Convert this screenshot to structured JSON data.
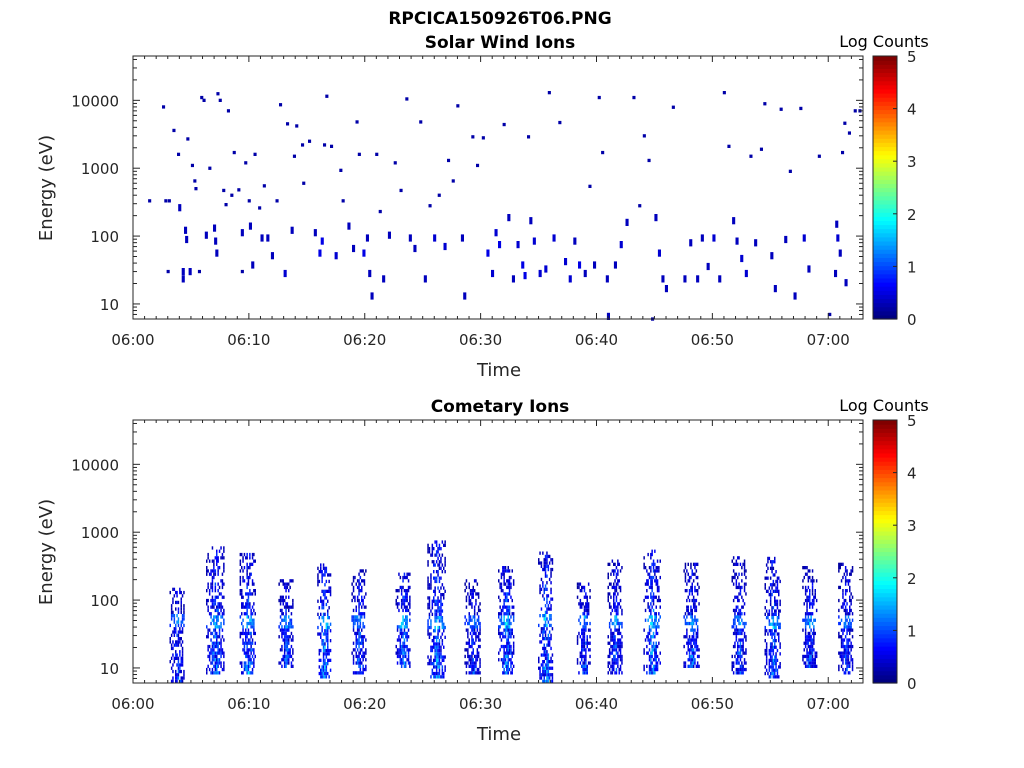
{
  "figure": {
    "title": "RPCICA150926T06.PNG"
  },
  "chart_data": [
    {
      "type": "heatmap",
      "title": "Solar Wind Ions",
      "xlabel": "Time",
      "ylabel": "Energy (eV)",
      "x_ticks": [
        "06:00",
        "06:10",
        "06:20",
        "06:30",
        "06:40",
        "06:50",
        "07:00"
      ],
      "xlim_minutes": [
        0,
        63
      ],
      "y_scale": "log",
      "y_ticks": [
        "10",
        "100",
        "1000",
        "10000"
      ],
      "ylim": [
        6,
        45000
      ],
      "colorbar": {
        "label": "Log Counts",
        "ticks": [
          "0",
          "1",
          "2",
          "3",
          "4",
          "5"
        ],
        "range": [
          0,
          5
        ],
        "colormap": "jet"
      },
      "cells": [
        [
          2.5,
          8000,
          0.2
        ],
        [
          2.7,
          330,
          0.2
        ],
        [
          3.0,
          330,
          0.2
        ],
        [
          2.9,
          30,
          0.2
        ],
        [
          3.4,
          3600,
          0.2
        ],
        [
          3.8,
          1600,
          0.2
        ],
        [
          3.9,
          280,
          0.3
        ],
        [
          4.2,
          32,
          0.3
        ],
        [
          4.2,
          25,
          0.3
        ],
        [
          4.4,
          130,
          0.3
        ],
        [
          4.5,
          95,
          0.3
        ],
        [
          4.6,
          2700,
          0.2
        ],
        [
          4.8,
          32,
          0.3
        ],
        [
          5.0,
          1100,
          0.2
        ],
        [
          5.2,
          650,
          0.2
        ],
        [
          5.3,
          500,
          0.2
        ],
        [
          5.6,
          30,
          0.2
        ],
        [
          5.8,
          11000,
          0.2
        ],
        [
          6.0,
          10000,
          0.2
        ],
        [
          6.2,
          110,
          0.3
        ],
        [
          6.5,
          1000,
          0.2
        ],
        [
          6.9,
          140,
          0.3
        ],
        [
          7.0,
          90,
          0.3
        ],
        [
          7.1,
          60,
          0.3
        ],
        [
          7.2,
          12500,
          0.2
        ],
        [
          7.4,
          10000,
          0.2
        ],
        [
          7.7,
          470,
          0.2
        ],
        [
          7.9,
          290,
          0.2
        ],
        [
          8.1,
          7000,
          0.2
        ],
        [
          8.4,
          400,
          0.2
        ],
        [
          8.6,
          1700,
          0.2
        ],
        [
          9.0,
          480,
          0.2
        ],
        [
          9.3,
          120,
          0.3
        ],
        [
          9.3,
          30,
          0.2
        ],
        [
          9.6,
          1200,
          0.2
        ],
        [
          9.9,
          330,
          0.2
        ],
        [
          10.0,
          150,
          0.3
        ],
        [
          10.2,
          40,
          0.3
        ],
        [
          10.4,
          1600,
          0.2
        ],
        [
          10.8,
          260,
          0.2
        ],
        [
          11.0,
          100,
          0.3
        ],
        [
          11.2,
          550,
          0.2
        ],
        [
          11.5,
          100,
          0.3
        ],
        [
          11.9,
          55,
          0.3
        ],
        [
          12.3,
          330,
          0.2
        ],
        [
          12.6,
          8600,
          0.2
        ],
        [
          13.0,
          30,
          0.4
        ],
        [
          13.2,
          4500,
          0.2
        ],
        [
          13.6,
          130,
          0.3
        ],
        [
          13.8,
          1500,
          0.2
        ],
        [
          14.0,
          4200,
          0.2
        ],
        [
          14.5,
          2200,
          0.2
        ],
        [
          14.6,
          600,
          0.2
        ],
        [
          15.1,
          2500,
          0.2
        ],
        [
          15.6,
          120,
          0.3
        ],
        [
          16.0,
          60,
          0.5
        ],
        [
          16.2,
          90,
          0.5
        ],
        [
          16.4,
          2200,
          0.2
        ],
        [
          16.6,
          11500,
          0.2
        ],
        [
          17.0,
          2100,
          0.2
        ],
        [
          17.4,
          55,
          0.4
        ],
        [
          17.8,
          930,
          0.2
        ],
        [
          18.0,
          330,
          0.2
        ],
        [
          18.5,
          150,
          0.3
        ],
        [
          18.9,
          70,
          0.3
        ],
        [
          19.2,
          4800,
          0.2
        ],
        [
          19.4,
          1600,
          0.2
        ],
        [
          19.8,
          60,
          0.5
        ],
        [
          20.1,
          100,
          0.3
        ],
        [
          20.3,
          30,
          0.3
        ],
        [
          20.5,
          14,
          0.3
        ],
        [
          20.9,
          1600,
          0.2
        ],
        [
          21.2,
          230,
          0.2
        ],
        [
          21.5,
          25,
          0.3
        ],
        [
          22.0,
          110,
          0.3
        ],
        [
          22.5,
          1200,
          0.2
        ],
        [
          23.0,
          470,
          0.2
        ],
        [
          23.5,
          10500,
          0.2
        ],
        [
          23.8,
          100,
          0.3
        ],
        [
          24.2,
          70,
          0.3
        ],
        [
          24.7,
          4800,
          0.2
        ],
        [
          25.1,
          25,
          0.3
        ],
        [
          25.5,
          280,
          0.2
        ],
        [
          25.9,
          100,
          0.4
        ],
        [
          26.3,
          400,
          0.2
        ],
        [
          26.8,
          75,
          0.4
        ],
        [
          27.1,
          1300,
          0.2
        ],
        [
          27.5,
          650,
          0.2
        ],
        [
          27.9,
          8300,
          0.2
        ],
        [
          28.3,
          100,
          0.3
        ],
        [
          28.5,
          14,
          0.3
        ],
        [
          29.2,
          2900,
          0.2
        ],
        [
          29.6,
          1100,
          0.2
        ],
        [
          30.1,
          2800,
          0.2
        ],
        [
          30.5,
          60,
          0.5
        ],
        [
          30.9,
          30,
          0.4
        ],
        [
          31.2,
          120,
          0.4
        ],
        [
          31.5,
          80,
          0.5
        ],
        [
          31.9,
          4400,
          0.2
        ],
        [
          32.3,
          200,
          0.3
        ],
        [
          32.7,
          25,
          0.3
        ],
        [
          33.1,
          80,
          0.4
        ],
        [
          33.5,
          40,
          0.5
        ],
        [
          33.7,
          28,
          0.5
        ],
        [
          34.0,
          2900,
          0.2
        ],
        [
          34.2,
          180,
          0.3
        ],
        [
          34.5,
          90,
          0.4
        ],
        [
          35.0,
          30,
          0.4
        ],
        [
          35.5,
          35,
          0.4
        ],
        [
          35.8,
          13000,
          0.2
        ],
        [
          36.2,
          100,
          0.4
        ],
        [
          36.7,
          4700,
          0.2
        ],
        [
          37.2,
          45,
          0.4
        ],
        [
          37.6,
          25,
          0.4
        ],
        [
          38.0,
          90,
          0.3
        ],
        [
          38.4,
          40,
          0.5
        ],
        [
          38.9,
          30,
          0.3
        ],
        [
          39.3,
          540,
          0.2
        ],
        [
          39.7,
          40,
          0.3
        ],
        [
          40.1,
          11000,
          0.2
        ],
        [
          40.4,
          1700,
          0.2
        ],
        [
          40.8,
          25,
          0.3
        ],
        [
          40.9,
          7,
          0.3
        ],
        [
          41.5,
          40,
          0.3
        ],
        [
          42.0,
          80,
          0.4
        ],
        [
          42.5,
          170,
          0.3
        ],
        [
          43.1,
          11000,
          0.2
        ],
        [
          43.6,
          280,
          0.2
        ],
        [
          44.0,
          3000,
          0.2
        ],
        [
          44.4,
          1300,
          0.2
        ],
        [
          44.7,
          6,
          0.2
        ],
        [
          45.0,
          200,
          0.3
        ],
        [
          45.3,
          60,
          0.4
        ],
        [
          45.6,
          25,
          0.3
        ],
        [
          45.9,
          18,
          0.3
        ],
        [
          46.5,
          7900,
          0.2
        ],
        [
          47.5,
          25,
          0.3
        ],
        [
          48.0,
          85,
          0.3
        ],
        [
          48.6,
          25,
          0.3
        ],
        [
          49.0,
          100,
          0.3
        ],
        [
          49.5,
          38,
          0.3
        ],
        [
          50.0,
          100,
          0.4
        ],
        [
          50.5,
          25,
          0.3
        ],
        [
          50.9,
          13000,
          0.2
        ],
        [
          51.3,
          2100,
          0.2
        ],
        [
          51.7,
          180,
          0.3
        ],
        [
          52.0,
          90,
          0.3
        ],
        [
          52.4,
          50,
          0.4
        ],
        [
          52.8,
          30,
          0.4
        ],
        [
          53.2,
          1500,
          0.2
        ],
        [
          53.6,
          85,
          0.3
        ],
        [
          54.1,
          1900,
          0.2
        ],
        [
          54.4,
          8900,
          0.2
        ],
        [
          55.0,
          55,
          0.3
        ],
        [
          55.3,
          18,
          0.3
        ],
        [
          55.8,
          7400,
          0.2
        ],
        [
          56.2,
          95,
          0.3
        ],
        [
          56.6,
          900,
          0.2
        ],
        [
          57.0,
          14,
          0.3
        ],
        [
          57.5,
          7600,
          0.2
        ],
        [
          57.8,
          100,
          0.4
        ],
        [
          58.2,
          35,
          0.3
        ],
        [
          59.1,
          1500,
          0.2
        ],
        [
          60.0,
          7,
          0.2
        ],
        [
          60.6,
          160,
          0.3
        ],
        [
          60.7,
          100,
          0.4
        ],
        [
          60.9,
          60,
          0.3
        ],
        [
          61.1,
          1700,
          0.2
        ],
        [
          61.3,
          4600,
          0.2
        ],
        [
          61.7,
          3300,
          0.2
        ],
        [
          62.2,
          7000,
          0.2
        ],
        [
          62.6,
          7000,
          0.2
        ],
        [
          60.5,
          30,
          0.3
        ],
        [
          61.4,
          22,
          0.3
        ],
        [
          1.3,
          330,
          0.2
        ]
      ]
    },
    {
      "type": "heatmap",
      "title": "Cometary Ions",
      "xlabel": "Time",
      "ylabel": "Energy (eV)",
      "x_ticks": [
        "06:00",
        "06:10",
        "06:20",
        "06:30",
        "06:40",
        "06:50",
        "07:00"
      ],
      "xlim_minutes": [
        0,
        63
      ],
      "y_scale": "log",
      "y_ticks": [
        "10",
        "100",
        "1000",
        "10000"
      ],
      "ylim": [
        6,
        45000
      ],
      "colorbar": {
        "label": "Log Counts",
        "ticks": [
          "0",
          "1",
          "2",
          "3",
          "4",
          "5"
        ],
        "range": [
          0,
          5
        ],
        "colormap": "jet"
      },
      "bursts": [
        {
          "t": 3.8,
          "width": 1.3,
          "e_min": 6,
          "e_max": 150,
          "peak": 1.5
        },
        {
          "t": 7.1,
          "width": 1.6,
          "e_min": 8,
          "e_max": 600,
          "peak": 1.8
        },
        {
          "t": 9.9,
          "width": 1.4,
          "e_min": 8,
          "e_max": 450,
          "peak": 1.9
        },
        {
          "t": 13.2,
          "width": 1.3,
          "e_min": 10,
          "e_max": 200,
          "peak": 1.5
        },
        {
          "t": 16.5,
          "width": 1.2,
          "e_min": 7,
          "e_max": 320,
          "peak": 2.0
        },
        {
          "t": 19.5,
          "width": 1.3,
          "e_min": 8,
          "e_max": 280,
          "peak": 1.6
        },
        {
          "t": 23.3,
          "width": 1.3,
          "e_min": 10,
          "e_max": 240,
          "peak": 1.8
        },
        {
          "t": 26.2,
          "width": 1.6,
          "e_min": 7,
          "e_max": 700,
          "peak": 1.9
        },
        {
          "t": 29.3,
          "width": 1.4,
          "e_min": 8,
          "e_max": 200,
          "peak": 1.3
        },
        {
          "t": 32.2,
          "width": 1.4,
          "e_min": 8,
          "e_max": 300,
          "peak": 1.9
        },
        {
          "t": 35.6,
          "width": 1.3,
          "e_min": 6,
          "e_max": 480,
          "peak": 1.9
        },
        {
          "t": 38.9,
          "width": 1.2,
          "e_min": 8,
          "e_max": 180,
          "peak": 1.6
        },
        {
          "t": 41.6,
          "width": 1.3,
          "e_min": 8,
          "e_max": 380,
          "peak": 1.5
        },
        {
          "t": 44.8,
          "width": 1.5,
          "e_min": 8,
          "e_max": 550,
          "peak": 1.9
        },
        {
          "t": 48.2,
          "width": 1.4,
          "e_min": 10,
          "e_max": 330,
          "peak": 1.6
        },
        {
          "t": 52.3,
          "width": 1.3,
          "e_min": 8,
          "e_max": 400,
          "peak": 1.5
        },
        {
          "t": 55.2,
          "width": 1.4,
          "e_min": 7,
          "e_max": 400,
          "peak": 1.7
        },
        {
          "t": 58.4,
          "width": 1.3,
          "e_min": 10,
          "e_max": 300,
          "peak": 1.5
        },
        {
          "t": 61.5,
          "width": 1.3,
          "e_min": 8,
          "e_max": 330,
          "peak": 1.4
        }
      ],
      "band_energy": 45
    }
  ]
}
